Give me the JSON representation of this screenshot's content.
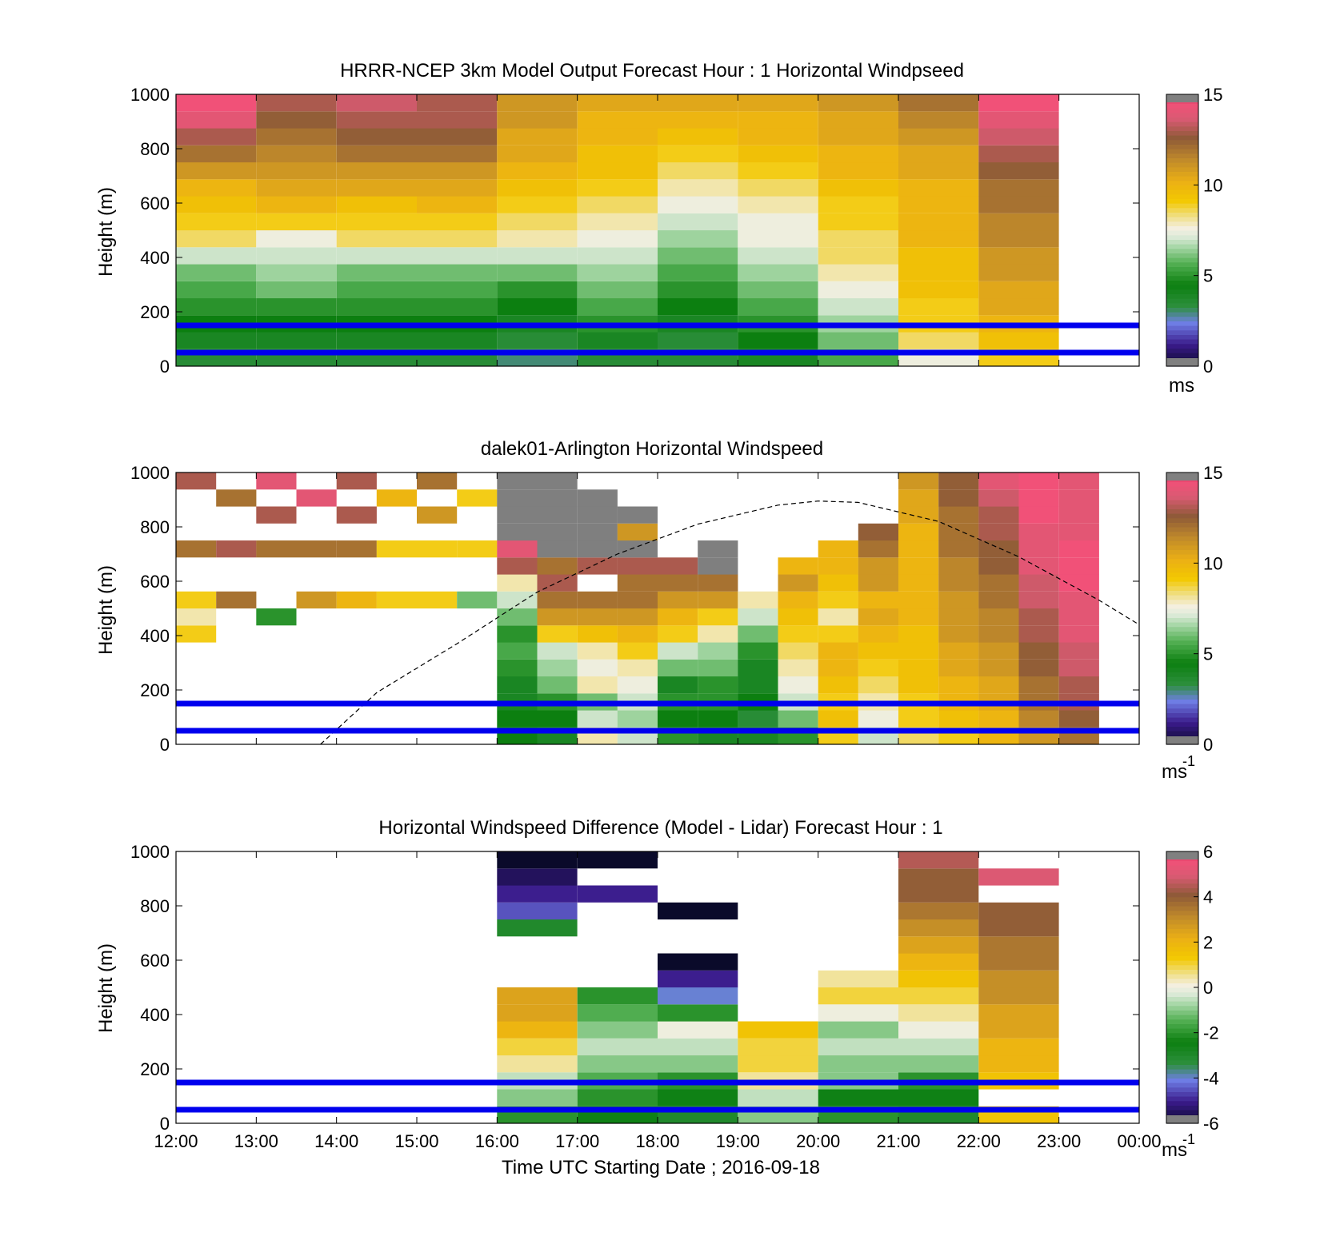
{
  "chart_data": [
    {
      "type": "heatmap",
      "title": "HRRR-NCEP 3km Model Output   Forecast Hour : 1 Horizontal Windpseed",
      "ylabel": "Height (m)",
      "ylim": [
        0,
        1000
      ],
      "yticks": [
        "0",
        "200",
        "400",
        "600",
        "800",
        "1000"
      ],
      "xlim": [
        12,
        24
      ],
      "colorbar": {
        "range": [
          0,
          15
        ],
        "ticks": [
          "0",
          "5",
          "10",
          "15"
        ],
        "unit": "ms",
        "unit_sup": ""
      },
      "reference_lines_m": [
        50,
        150
      ],
      "columns": [
        {
          "x": 12,
          "values": [
            3.5,
            4,
            4.5,
            5,
            5.5,
            6,
            7,
            8.5,
            9,
            9.5,
            10,
            11,
            12,
            13,
            14,
            14.5
          ]
        },
        {
          "x": 13,
          "values": [
            3.5,
            4,
            4.5,
            5,
            6,
            6.5,
            7,
            7.5,
            9,
            10,
            10.5,
            11,
            11.5,
            12,
            12.5,
            13
          ]
        },
        {
          "x": 14,
          "values": [
            3.5,
            4,
            4.5,
            5,
            5.5,
            6,
            7,
            8.5,
            9,
            9.5,
            10.5,
            11,
            12,
            12.5,
            13,
            13.5
          ]
        },
        {
          "x": 15,
          "values": [
            3.5,
            4,
            4.5,
            5,
            5.5,
            6,
            7,
            8.5,
            9,
            10,
            10.5,
            11,
            12,
            12.5,
            13,
            13
          ]
        },
        {
          "x": 16,
          "values": [
            3,
            3.5,
            4,
            4.5,
            5,
            6,
            7,
            8,
            8.5,
            9,
            9.5,
            10,
            10.5,
            10.5,
            11,
            11
          ]
        },
        {
          "x": 17,
          "values": [
            3.5,
            4,
            5,
            5.5,
            6,
            6.5,
            7,
            7.5,
            8,
            8.5,
            9,
            9.5,
            9.5,
            10,
            10,
            10.5
          ]
        },
        {
          "x": 18,
          "values": [
            3.5,
            3.5,
            4,
            4.5,
            5,
            5.5,
            6,
            6.5,
            7,
            7.5,
            8,
            8.5,
            9,
            9.5,
            10,
            10.5
          ]
        },
        {
          "x": 19,
          "values": [
            4,
            4.5,
            5,
            5.5,
            6,
            6.5,
            7,
            7.5,
            7.5,
            8,
            8.5,
            9,
            9.5,
            10,
            10,
            10.5
          ]
        },
        {
          "x": 20,
          "values": [
            5.5,
            6,
            6.5,
            7,
            7.5,
            8,
            8.5,
            8.5,
            9,
            9,
            9.5,
            10,
            10,
            10.5,
            10.5,
            11
          ]
        },
        {
          "x": 21,
          "values": [
            7.5,
            8.5,
            9,
            9,
            9.5,
            9.5,
            9.5,
            10,
            10,
            10,
            10,
            10.5,
            10.5,
            11,
            11.5,
            12
          ]
        },
        {
          "x": 22,
          "values": [
            9,
            9.5,
            10,
            10.5,
            10.5,
            11,
            11,
            11.5,
            11.5,
            12,
            12,
            12.5,
            13,
            13.5,
            14,
            14.5
          ]
        }
      ]
    },
    {
      "type": "heatmap",
      "title": "dalek01-Arlington  Horizontal Windspeed",
      "ylabel": "Height (m)",
      "ylim": [
        0,
        1000
      ],
      "yticks": [
        "0",
        "200",
        "400",
        "600",
        "800",
        "1000"
      ],
      "xlim": [
        12,
        24
      ],
      "colorbar": {
        "range": [
          0,
          15
        ],
        "ticks": [
          "0",
          "5",
          "10",
          "15"
        ],
        "unit": "ms",
        "unit_sup": "-1"
      },
      "reference_lines_m": [
        50,
        150
      ],
      "curve": {
        "style": "dashed",
        "x": [
          13.8,
          14.5,
          15.5,
          16.5,
          17.5,
          18.5,
          19.5,
          20.0,
          20.5,
          21.5,
          22.5,
          23.5,
          24.0
        ],
        "y": [
          0,
          190,
          370,
          560,
          700,
          810,
          880,
          895,
          890,
          820,
          690,
          530,
          440
        ]
      },
      "columns": [
        {
          "x": 12.0,
          "values": [
            null,
            null,
            null,
            null,
            null,
            null,
            9,
            8,
            9,
            null,
            null,
            12,
            null,
            null,
            null,
            13
          ]
        },
        {
          "x": 12.5,
          "values": [
            null,
            null,
            null,
            null,
            null,
            null,
            null,
            null,
            12,
            null,
            null,
            13,
            null,
            null,
            12,
            null
          ]
        },
        {
          "x": 13.0,
          "values": [
            null,
            null,
            null,
            null,
            null,
            null,
            null,
            5,
            null,
            null,
            null,
            12,
            null,
            13,
            null,
            14
          ]
        },
        {
          "x": 13.5,
          "values": [
            null,
            null,
            null,
            null,
            null,
            null,
            null,
            null,
            11,
            null,
            null,
            12,
            null,
            null,
            14,
            null
          ]
        },
        {
          "x": 14.0,
          "values": [
            null,
            null,
            null,
            null,
            null,
            null,
            null,
            null,
            10,
            null,
            null,
            12,
            null,
            13,
            null,
            13
          ]
        },
        {
          "x": 14.5,
          "values": [
            null,
            null,
            null,
            null,
            null,
            null,
            null,
            null,
            9,
            null,
            null,
            9,
            null,
            null,
            10,
            null
          ]
        },
        {
          "x": 15.0,
          "values": [
            null,
            null,
            null,
            null,
            null,
            null,
            null,
            null,
            9,
            null,
            null,
            9,
            null,
            11,
            null,
            12
          ]
        },
        {
          "x": 15.5,
          "values": [
            null,
            null,
            null,
            null,
            null,
            null,
            null,
            null,
            6,
            null,
            null,
            9,
            null,
            null,
            9,
            null
          ]
        },
        {
          "x": 16.0,
          "values": [
            4.5,
            4.5,
            4,
            4,
            5,
            5.5,
            5,
            6,
            7,
            8,
            13,
            14,
            0,
            0,
            0,
            0
          ]
        },
        {
          "x": 16.5,
          "values": [
            4,
            4.5,
            5,
            6,
            6.5,
            7,
            9,
            11,
            12,
            13,
            12,
            0,
            0,
            0,
            0,
            0
          ]
        },
        {
          "x": 17.0,
          "values": [
            8,
            7,
            6,
            8,
            7.5,
            8,
            9.5,
            11,
            12,
            null,
            13,
            0,
            0,
            0,
            0,
            null
          ]
        },
        {
          "x": 17.5,
          "values": [
            7,
            6.5,
            7,
            7.5,
            8,
            9,
            10,
            11,
            12,
            12,
            13,
            0,
            11,
            0,
            null,
            null
          ]
        },
        {
          "x": 18.0,
          "values": [
            5,
            4.5,
            5,
            4,
            6,
            7,
            9,
            10,
            11,
            12,
            13,
            null,
            null,
            null,
            null,
            null
          ]
        },
        {
          "x": 18.5,
          "values": [
            4,
            4.5,
            5,
            5,
            6,
            6.5,
            8,
            9,
            11,
            12,
            0,
            0,
            null,
            null,
            null,
            null
          ]
        },
        {
          "x": 19.0,
          "values": [
            4,
            3.5,
            4.5,
            4,
            4,
            5,
            6,
            7,
            8,
            null,
            null,
            null,
            null,
            null,
            null,
            null
          ]
        },
        {
          "x": 19.5,
          "values": [
            5,
            6,
            7,
            7.5,
            8,
            8.5,
            9,
            9.5,
            10,
            11,
            10,
            null,
            null,
            null,
            null,
            null
          ]
        },
        {
          "x": 20.0,
          "values": [
            9,
            9.5,
            9,
            9.5,
            10,
            10,
            9,
            8,
            9,
            9.5,
            10,
            10,
            null,
            null,
            null,
            null
          ]
        },
        {
          "x": 20.5,
          "values": [
            7,
            7.5,
            8,
            8.5,
            9,
            9.5,
            10,
            10.5,
            10,
            11,
            11,
            12,
            12.5,
            null,
            null,
            null
          ]
        },
        {
          "x": 21.0,
          "values": [
            8.5,
            9,
            9,
            9.5,
            9.5,
            9.5,
            9.5,
            10,
            10,
            10,
            10,
            10,
            10,
            10.5,
            10.5,
            11
          ]
        },
        {
          "x": 21.5,
          "values": [
            9,
            9.5,
            10,
            10,
            10.5,
            10.5,
            11,
            11,
            11,
            11.5,
            11.5,
            12,
            12,
            12,
            12.5,
            12.5
          ]
        },
        {
          "x": 22.0,
          "values": [
            10,
            10,
            10.5,
            10.5,
            11,
            11,
            11.5,
            11.5,
            12,
            12,
            12.5,
            12.5,
            13,
            13,
            13.5,
            14
          ]
        },
        {
          "x": 22.5,
          "values": [
            11,
            11.5,
            12,
            12,
            12.5,
            12.5,
            13,
            13,
            13.5,
            13.5,
            14,
            14,
            14,
            14.5,
            14.5,
            14.5
          ]
        },
        {
          "x": 23.0,
          "values": [
            12,
            12.5,
            13,
            13,
            13.5,
            13.5,
            14,
            14,
            14,
            14.5,
            14.5,
            14.5,
            14,
            14,
            14,
            14
          ]
        }
      ]
    },
    {
      "type": "heatmap",
      "title": "Horizontal Windspeed Difference (Model - Lidar) Forecast Hour : 1",
      "xlabel": "Time UTC  Starting Date ; 2016-09-18",
      "ylabel": "Height (m)",
      "ylim": [
        0,
        1000
      ],
      "yticks": [
        "0",
        "200",
        "400",
        "600",
        "800",
        "1000"
      ],
      "xlim": [
        12,
        24
      ],
      "xticks": [
        "12:00",
        "13:00",
        "14:00",
        "15:00",
        "16:00",
        "17:00",
        "18:00",
        "19:00",
        "20:00",
        "21:00",
        "22:00",
        "23:00",
        "00:00"
      ],
      "colorbar": {
        "range": [
          -6,
          6
        ],
        "ticks": [
          "-6",
          "-4",
          "-2",
          "0",
          "2",
          "4",
          "6"
        ],
        "unit": "ms",
        "unit_sup": "-1"
      },
      "reference_lines_m": [
        50,
        150
      ],
      "columns": [
        {
          "x": 16,
          "values": [
            -2,
            -1,
            -0.5,
            0.5,
            1,
            2,
            2.5,
            2.5,
            null,
            null,
            null,
            -3,
            -4.5,
            -5,
            -5.5,
            -6
          ]
        },
        {
          "x": 17,
          "values": [
            -2.5,
            -2,
            -1.5,
            -1,
            -0.5,
            -1,
            -1.5,
            -2,
            null,
            null,
            null,
            null,
            null,
            -5,
            null,
            -6
          ]
        },
        {
          "x": 18,
          "values": [
            -3,
            -2.5,
            -2,
            -1,
            -0.5,
            0,
            -2,
            -4,
            -5,
            -6,
            null,
            null,
            -6,
            null,
            null,
            null
          ]
        },
        {
          "x": 19,
          "values": [
            -1,
            -0.5,
            0.5,
            1,
            1,
            1.5,
            null,
            null,
            null,
            null,
            null,
            null,
            null,
            null,
            null,
            null
          ]
        },
        {
          "x": 20,
          "values": [
            -2,
            -2.5,
            -1,
            -1,
            -0.5,
            -1,
            0,
            1,
            0.5,
            null,
            null,
            null,
            null,
            null,
            null,
            null
          ]
        },
        {
          "x": 21,
          "values": [
            -3,
            -2.5,
            -2,
            -1,
            -0.5,
            0,
            0.5,
            1,
            1.5,
            2,
            2.5,
            3,
            3.5,
            4,
            4,
            4.5
          ]
        },
        {
          "x": 22,
          "values": [
            1.5,
            null,
            1.5,
            2,
            2,
            2.5,
            2.5,
            3,
            3,
            3.5,
            3.5,
            4,
            4,
            null,
            5,
            null
          ]
        }
      ]
    }
  ]
}
